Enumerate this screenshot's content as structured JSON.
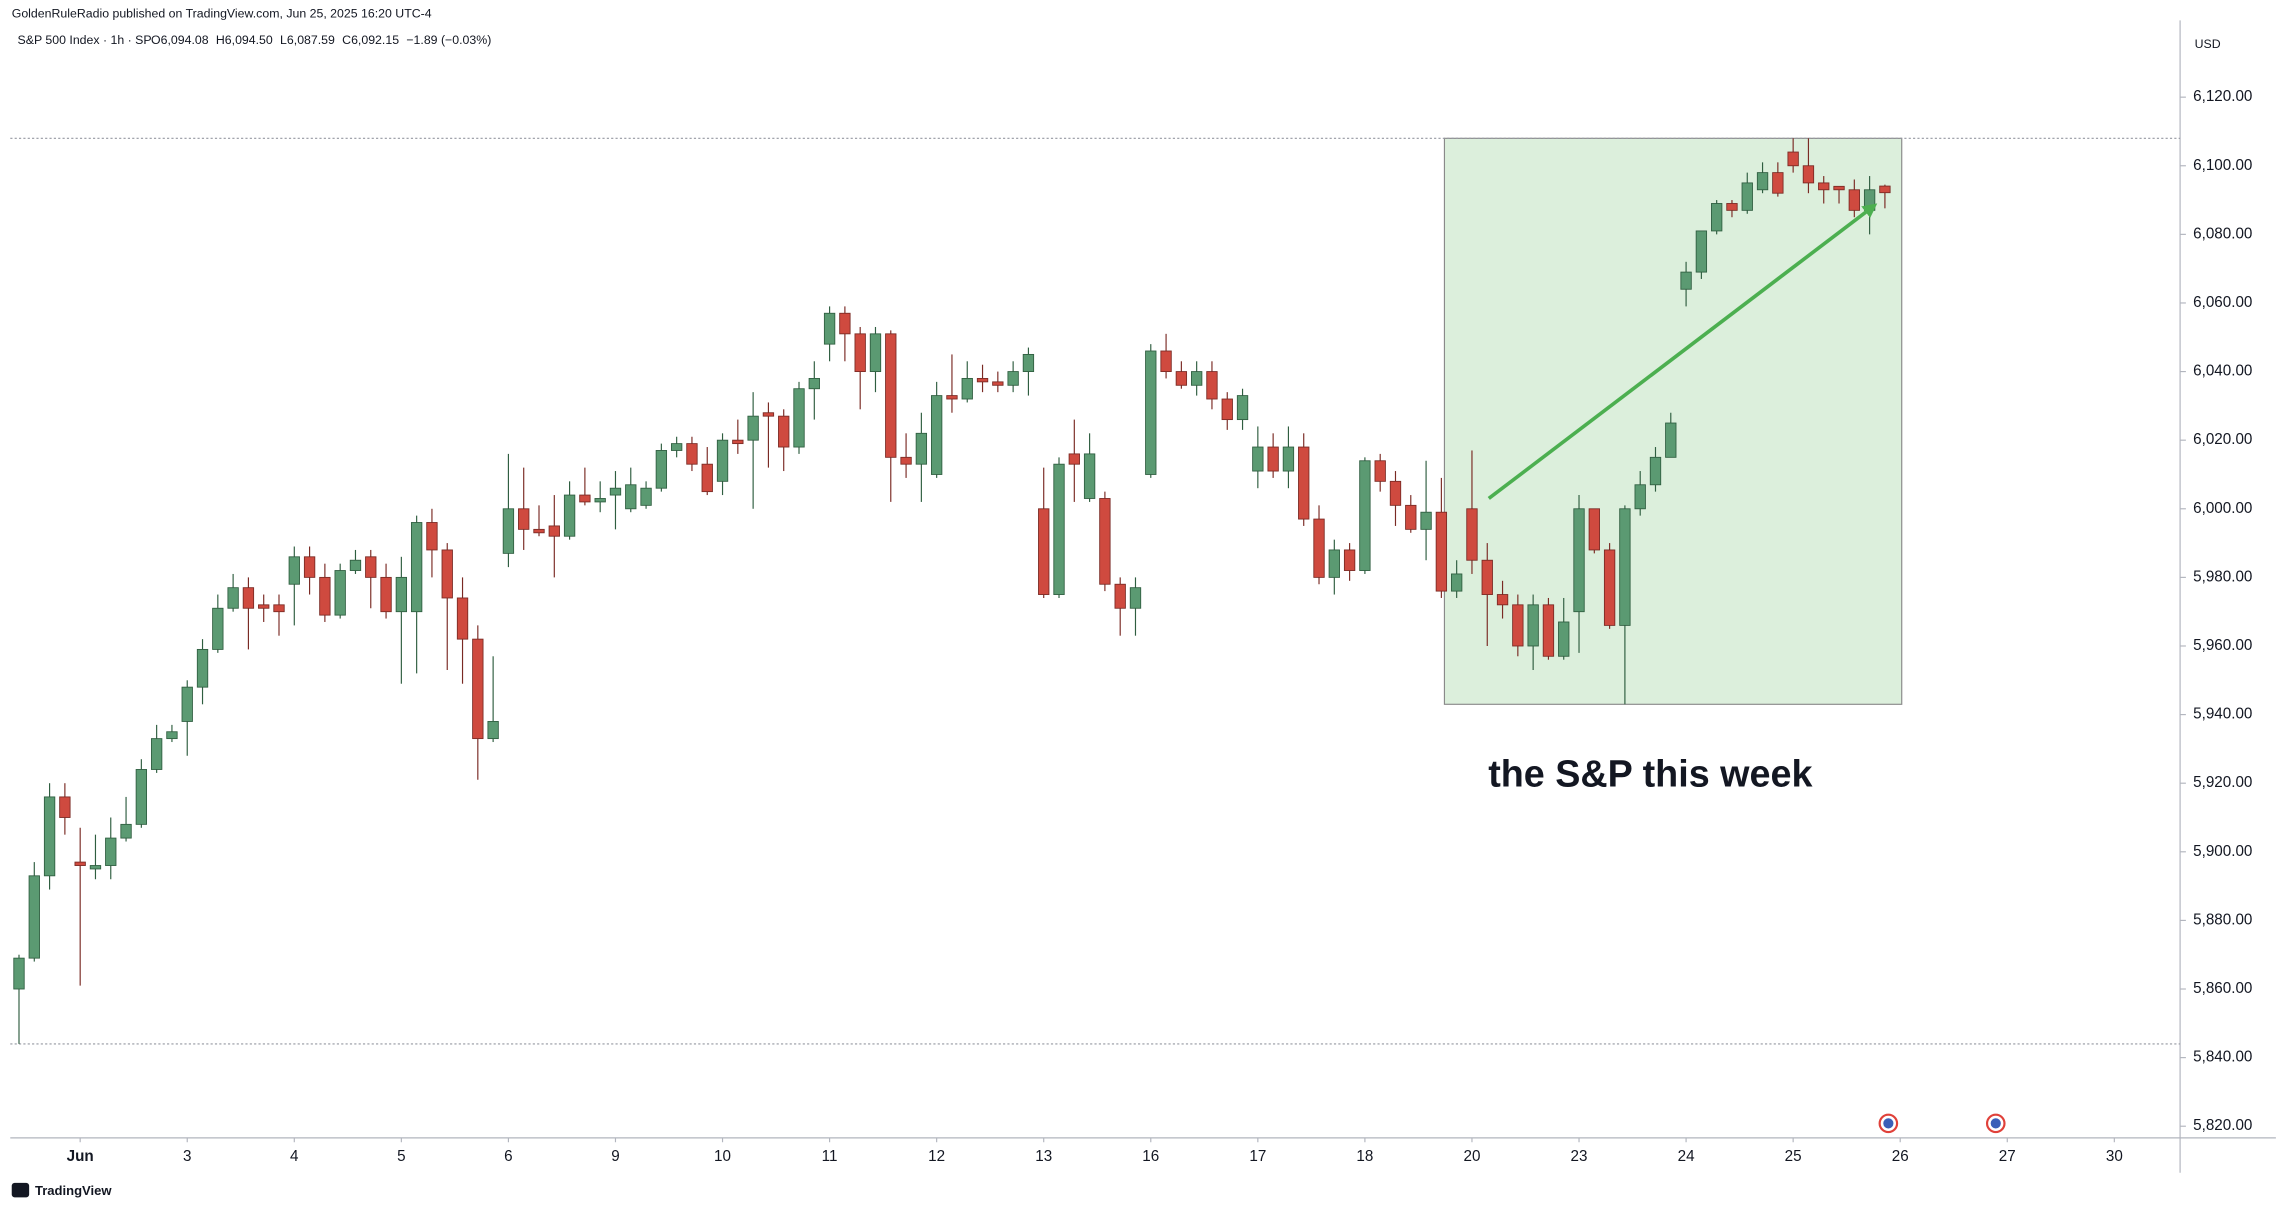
{
  "header": {
    "publisher": "GoldenRuleRadio published on TradingView.com, Jun 25, 2025 16:20 UTC-4"
  },
  "chart_data": {
    "type": "candlestick",
    "symbol": "S&P 500 Index · 1h · SP",
    "legend_values": [
      "O6,094.08",
      "H6,094.50",
      "L6,087.59",
      "C6,092.15",
      "−1.89 (−0.03%)"
    ],
    "currency": "USD",
    "x": [
      0,
      1,
      2,
      3,
      4,
      5,
      6,
      7,
      8,
      9,
      10,
      11,
      12,
      13,
      14,
      15,
      16,
      17,
      18,
      19,
      20,
      21,
      22,
      23,
      24,
      25,
      26,
      27,
      28,
      29,
      30,
      31,
      32,
      33,
      34,
      35,
      36,
      37,
      38,
      39,
      40,
      41,
      42,
      43,
      44,
      45,
      46,
      47,
      48,
      49,
      50,
      51,
      52,
      53,
      54,
      55,
      56,
      57,
      58,
      59,
      60,
      61,
      62,
      63,
      64,
      65,
      66,
      67,
      68,
      69,
      70,
      71,
      72,
      73,
      74,
      75,
      76,
      77,
      78,
      79,
      80,
      81,
      82,
      83,
      84,
      85,
      86,
      87,
      88,
      89,
      90,
      91,
      92,
      93,
      94,
      95,
      96,
      97,
      98,
      99,
      100,
      101,
      102,
      103,
      104,
      105,
      106,
      107,
      108,
      109,
      110,
      111,
      112,
      113,
      114,
      115,
      116,
      117,
      118,
      119,
      120,
      121,
      122
    ],
    "series": [
      {
        "up_color": "#5b9a72",
        "down_color": "#cf4a3f",
        "up_border": "#2f5e40",
        "down_border": "#7a2a24",
        "open": [
          5860,
          5869,
          5893,
          5916,
          5897,
          5895,
          5896,
          5904,
          5908,
          5924,
          5933,
          5938,
          5948,
          5959,
          5971,
          5977,
          5972,
          5972,
          5978,
          5986,
          5980,
          5969,
          5982,
          5986,
          5980,
          5970,
          5970,
          5996,
          5988,
          5974,
          5962,
          5933,
          5987,
          6000,
          5994,
          5995,
          5992,
          6004,
          6002,
          6004,
          6000,
          6001,
          6006,
          6017,
          6019,
          6013,
          6008,
          6020,
          6020,
          6028,
          6027,
          6018,
          6035,
          6048,
          6057,
          6051,
          6040,
          6051,
          6015,
          6013,
          6010,
          6033,
          6032,
          6038,
          6037,
          6036,
          6040,
          6000,
          5975,
          6016,
          6003,
          6003,
          5978,
          5971,
          6010,
          6046,
          6040,
          6036,
          6040,
          6032,
          6026,
          6011,
          6018,
          6011,
          6018,
          5997,
          5980,
          5988,
          5982,
          6014,
          6008,
          6001,
          5994,
          5999,
          5976,
          6000,
          5985,
          5975,
          5972,
          5960,
          5972,
          5957,
          5970,
          6000,
          5988,
          5966,
          6000,
          6007,
          6015,
          6064,
          6069,
          6081,
          6089,
          6087,
          6093,
          6098,
          6104,
          6100,
          6095,
          6094,
          6093,
          6087,
          6094.08
        ],
        "high": [
          5870,
          5897,
          5920,
          5920,
          5907,
          5905,
          5910,
          5916,
          5927,
          5937,
          5937,
          5950,
          5962,
          5975,
          5981,
          5980,
          5975,
          5975,
          5989,
          5989,
          5984,
          5984,
          5988,
          5988,
          5984,
          5986,
          5998,
          6000,
          5990,
          5980,
          5966,
          5957,
          6016,
          6012,
          6001,
          6004,
          6008,
          6012,
          6008,
          6011,
          6012,
          6008,
          6019,
          6021,
          6021,
          6018,
          6022,
          6026,
          6034,
          6031,
          6029,
          6037,
          6043,
          6059,
          6059,
          6053,
          6053,
          6052,
          6022,
          6028,
          6037,
          6045,
          6043,
          6042,
          6040,
          6043,
          6047,
          6012,
          6015,
          6026,
          6022,
          6005,
          5980,
          5980,
          6048,
          6051,
          6043,
          6043,
          6043,
          6034,
          6035,
          6024,
          6022,
          6024,
          6022,
          6001,
          5991,
          5990,
          6015,
          6016,
          6011,
          6004,
          6014,
          6009,
          5985,
          6017,
          5990,
          5979,
          5975,
          5975,
          5974,
          5974,
          6004,
          6000,
          5990,
          6001,
          6011,
          6018,
          6028,
          6072,
          6081,
          6090,
          6090,
          6098,
          6101,
          6101,
          6108,
          6108,
          6097,
          6094,
          6096,
          6097,
          6094.5
        ],
        "low": [
          5844,
          5868,
          5889,
          5905,
          5861,
          5892,
          5892,
          5903,
          5907,
          5923,
          5932,
          5928,
          5943,
          5958,
          5970,
          5959,
          5967,
          5963,
          5966,
          5975,
          5967,
          5968,
          5981,
          5971,
          5968,
          5949,
          5952,
          5980,
          5953,
          5949,
          5921,
          5932,
          5983,
          5988,
          5992,
          5980,
          5991,
          6001,
          5999,
          5994,
          5999,
          6000,
          6005,
          6015,
          6011,
          6004,
          6004,
          6016,
          6000,
          6012,
          6011,
          6016,
          6026,
          6043,
          6043,
          6029,
          6034,
          6002,
          6009,
          6002,
          6009,
          6028,
          6031,
          6034,
          6034,
          6034,
          6033,
          5974,
          5974,
          6002,
          6002,
          5976,
          5963,
          5963,
          6009,
          6038,
          6035,
          6033,
          6029,
          6023,
          6023,
          6006,
          6009,
          6006,
          5995,
          5978,
          5975,
          5979,
          5981,
          6005,
          5995,
          5993,
          5985,
          5974,
          5974,
          5981,
          5960,
          5968,
          5957,
          5953,
          5956,
          5956,
          5958,
          5987,
          5965,
          5943,
          5998,
          6005,
          6015,
          6059,
          6067,
          6080,
          6085,
          6086,
          6092,
          6091,
          6098,
          6092,
          6089,
          6089,
          6085,
          6080,
          6087.59
        ],
        "close": [
          5869,
          5893,
          5916,
          5910,
          5896,
          5896,
          5904,
          5908,
          5924,
          5933,
          5935,
          5948,
          5959,
          5971,
          5977,
          5971,
          5971,
          5970,
          5986,
          5980,
          5969,
          5982,
          5985,
          5980,
          5970,
          5980,
          5996,
          5988,
          5974,
          5962,
          5933,
          5938,
          6000,
          5994,
          5993,
          5992,
          6004,
          6002,
          6003,
          6006,
          6007,
          6006,
          6017,
          6019,
          6013,
          6005,
          6020,
          6019,
          6027,
          6027,
          6018,
          6035,
          6038,
          6057,
          6051,
          6040,
          6051,
          6015,
          6013,
          6022,
          6033,
          6032,
          6038,
          6037,
          6036,
          6040,
          6045,
          5975,
          6013,
          6013,
          6016,
          5978,
          5971,
          5977,
          6046,
          6040,
          6036,
          6040,
          6032,
          6026,
          6033,
          6018,
          6011,
          6018,
          5997,
          5980,
          5988,
          5982,
          6014,
          6008,
          6001,
          5994,
          5999,
          5976,
          5981,
          5985,
          5975,
          5972,
          5960,
          5972,
          5957,
          5967,
          6000,
          5988,
          5966,
          6000,
          6007,
          6015,
          6025,
          6069,
          6081,
          6089,
          6087,
          6095,
          6098,
          6092,
          6100,
          6095,
          6093,
          6093,
          6087,
          6093,
          6092.15
        ]
      }
    ],
    "xlim": [
      -0.57,
      141.3
    ],
    "xticks": [
      {
        "value": 4,
        "label": "Jun"
      },
      {
        "value": 11,
        "label": "3"
      },
      {
        "value": 18,
        "label": "4"
      },
      {
        "value": 25,
        "label": "5"
      },
      {
        "value": 32,
        "label": "6"
      },
      {
        "value": 39,
        "label": "9"
      },
      {
        "value": 46,
        "label": "10"
      },
      {
        "value": 53,
        "label": "11"
      },
      {
        "value": 60,
        "label": "12"
      },
      {
        "value": 67,
        "label": "13"
      },
      {
        "value": 74,
        "label": "16"
      },
      {
        "value": 81,
        "label": "17"
      },
      {
        "value": 88,
        "label": "18"
      },
      {
        "value": 95,
        "label": "20"
      },
      {
        "value": 102,
        "label": "23"
      },
      {
        "value": 109,
        "label": "24"
      },
      {
        "value": 116,
        "label": "25"
      },
      {
        "value": 123,
        "label": "26"
      },
      {
        "value": 130,
        "label": "27"
      },
      {
        "value": 137,
        "label": "30"
      }
    ],
    "ylim": [
      5816.6,
      6142.4
    ],
    "yticks": [
      {
        "value": 5820,
        "label": "5,820.00"
      },
      {
        "value": 5840,
        "label": "5,840.00"
      },
      {
        "value": 5860,
        "label": "5,860.00"
      },
      {
        "value": 5880,
        "label": "5,880.00"
      },
      {
        "value": 5900,
        "label": "5,900.00"
      },
      {
        "value": 5920,
        "label": "5,920.00"
      },
      {
        "value": 5940,
        "label": "5,940.00"
      },
      {
        "value": 5960,
        "label": "5,960.00"
      },
      {
        "value": 5980,
        "label": "5,980.00"
      },
      {
        "value": 6000,
        "label": "6,000.00"
      },
      {
        "value": 6020,
        "label": "6,020.00"
      },
      {
        "value": 6040,
        "label": "6,040.00"
      },
      {
        "value": 6060,
        "label": "6,060.00"
      },
      {
        "value": 6080,
        "label": "6,080.00"
      },
      {
        "value": 6100,
        "label": "6,100.00"
      },
      {
        "value": 6120,
        "label": "6,120.00"
      }
    ],
    "grid": false,
    "annotations": {
      "text": "the S&P this week",
      "highlight": {
        "x": [
          93.2,
          123.1
        ],
        "y": [
          5943,
          6108
        ],
        "color": "#dcefdc"
      },
      "arrow": {
        "x": [
          96.1,
          121.2
        ],
        "y": [
          6003,
          6088
        ],
        "color": "#4caf50"
      }
    }
  },
  "footer": {
    "logo": "TradingView"
  }
}
